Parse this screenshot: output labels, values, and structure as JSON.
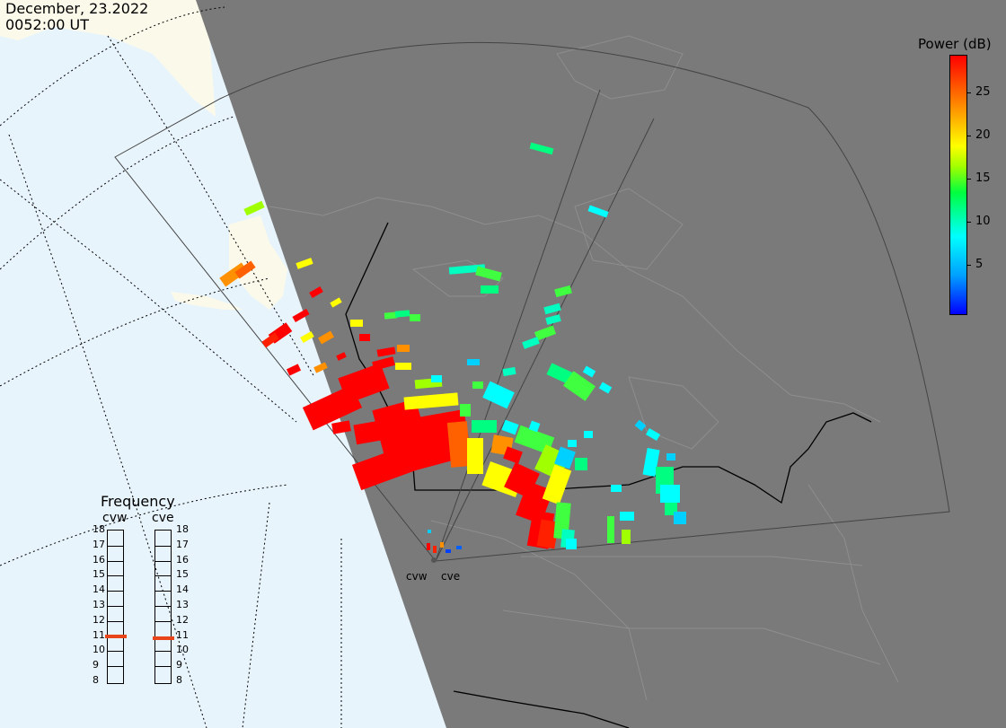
{
  "date": "December, 23.2022",
  "time": "0052:00 UT",
  "colorbar": {
    "title": "Power (dB)",
    "ticks": [
      "25",
      "20",
      "15",
      "10",
      "5"
    ],
    "colors": [
      "#0000ff",
      "#00ffff",
      "#00ff40",
      "#ffff00",
      "#ff9000",
      "#ff0000"
    ]
  },
  "frequency": {
    "title": "Frequency",
    "radars": [
      {
        "name": "cvw",
        "selected_mhz": 10.9
      },
      {
        "name": "cve",
        "selected_mhz": 10.8
      }
    ],
    "scale": [
      "18",
      "17",
      "16",
      "15",
      "14",
      "13",
      "12",
      "11",
      "10",
      "9",
      "8"
    ]
  },
  "sites": [
    "cvw",
    "cve"
  ],
  "colors": {
    "land": "#7a7a7a",
    "ocean": "#e8f4fc",
    "ice": "#fbfaea",
    "marker": "#e8461a"
  }
}
